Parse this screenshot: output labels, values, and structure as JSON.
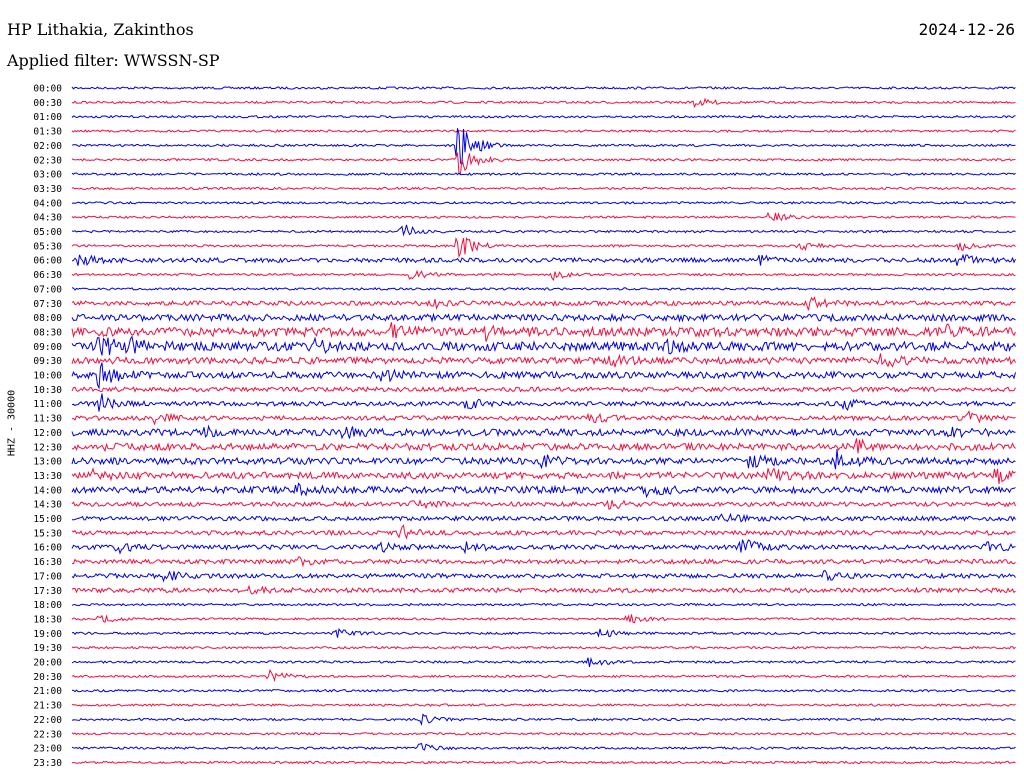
{
  "header": {
    "station": "HP Lithakia, Zakinthos",
    "date": "2024-12-26",
    "filter": "Applied filter: WWSSN-SP"
  },
  "colors": {
    "even_trace": "#0000e0",
    "odd_trace": "#f01040"
  },
  "chart_data": {
    "type": "line",
    "title": "HP Lithakia, Zakinthos",
    "subtitle": "Applied filter: WWSSN-SP",
    "ylabel": "HHZ - 30000",
    "xlabel": "",
    "row_labels": [
      "00:00",
      "00:30",
      "01:00",
      "01:30",
      "02:00",
      "02:30",
      "03:00",
      "03:30",
      "04:00",
      "04:30",
      "05:00",
      "05:30",
      "06:00",
      "06:30",
      "07:00",
      "07:30",
      "08:00",
      "08:30",
      "09:00",
      "09:30",
      "10:00",
      "10:30",
      "11:00",
      "11:30",
      "12:00",
      "12:30",
      "13:00",
      "13:30",
      "14:00",
      "14:30",
      "15:00",
      "15:30",
      "16:00",
      "16:30",
      "17:00",
      "17:30",
      "18:00",
      "18:30",
      "19:00",
      "19:30",
      "20:00",
      "20:30",
      "21:00",
      "21:30",
      "22:00",
      "22:30",
      "23:00",
      "23:30"
    ],
    "noise_level": [
      1,
      1,
      1,
      1,
      1,
      1,
      1,
      1,
      1,
      1,
      1,
      1,
      2,
      1,
      1,
      2,
      3,
      4,
      4,
      3,
      3,
      2,
      2,
      2,
      3,
      3,
      3,
      3,
      3,
      2,
      2,
      2,
      2,
      2,
      2,
      2,
      1,
      1,
      1,
      1,
      1,
      1,
      1,
      1,
      1,
      1,
      1,
      1
    ],
    "events": [
      {
        "row": 1,
        "x": 0.66,
        "amp": 1.5
      },
      {
        "row": 4,
        "x": 0.41,
        "amp": 8
      },
      {
        "row": 5,
        "x": 0.41,
        "amp": 5
      },
      {
        "row": 9,
        "x": 0.74,
        "amp": 1.5
      },
      {
        "row": 10,
        "x": 0.35,
        "amp": 2.5
      },
      {
        "row": 11,
        "x": 0.41,
        "amp": 4
      },
      {
        "row": 11,
        "x": 0.77,
        "amp": 1.5
      },
      {
        "row": 11,
        "x": 0.94,
        "amp": 1.5
      },
      {
        "row": 12,
        "x": 0.01,
        "amp": 1.5
      },
      {
        "row": 12,
        "x": 0.73,
        "amp": 1.5
      },
      {
        "row": 12,
        "x": 0.94,
        "amp": 2
      },
      {
        "row": 13,
        "x": 0.36,
        "amp": 1.5
      },
      {
        "row": 13,
        "x": 0.51,
        "amp": 1.5
      },
      {
        "row": 15,
        "x": 0.38,
        "amp": 1.5
      },
      {
        "row": 15,
        "x": 0.78,
        "amp": 2
      },
      {
        "row": 17,
        "x": 0.34,
        "amp": 2
      },
      {
        "row": 17,
        "x": 0.44,
        "amp": 2
      },
      {
        "row": 17,
        "x": 0.93,
        "amp": 2
      },
      {
        "row": 18,
        "x": 0.03,
        "amp": 3
      },
      {
        "row": 18,
        "x": 0.06,
        "amp": 2
      },
      {
        "row": 18,
        "x": 0.26,
        "amp": 1.5
      },
      {
        "row": 18,
        "x": 0.63,
        "amp": 1.5
      },
      {
        "row": 19,
        "x": 0.57,
        "amp": 1.5
      },
      {
        "row": 19,
        "x": 0.86,
        "amp": 2
      },
      {
        "row": 20,
        "x": 0.03,
        "amp": 4
      },
      {
        "row": 20,
        "x": 0.33,
        "amp": 1.5
      },
      {
        "row": 22,
        "x": 0.03,
        "amp": 3
      },
      {
        "row": 22,
        "x": 0.42,
        "amp": 1.5
      },
      {
        "row": 22,
        "x": 0.82,
        "amp": 1.5
      },
      {
        "row": 23,
        "x": 0.09,
        "amp": 1.5
      },
      {
        "row": 23,
        "x": 0.55,
        "amp": 1.5
      },
      {
        "row": 23,
        "x": 0.95,
        "amp": 1.5
      },
      {
        "row": 24,
        "x": 0.14,
        "amp": 1.5
      },
      {
        "row": 24,
        "x": 0.29,
        "amp": 1.5
      },
      {
        "row": 24,
        "x": 0.93,
        "amp": 1.5
      },
      {
        "row": 25,
        "x": 0.02,
        "amp": 1.5
      },
      {
        "row": 25,
        "x": 0.83,
        "amp": 2
      },
      {
        "row": 26,
        "x": 0.5,
        "amp": 1.5
      },
      {
        "row": 26,
        "x": 0.72,
        "amp": 2
      },
      {
        "row": 26,
        "x": 0.81,
        "amp": 3
      },
      {
        "row": 27,
        "x": 0.02,
        "amp": 1.5
      },
      {
        "row": 27,
        "x": 0.74,
        "amp": 2
      },
      {
        "row": 27,
        "x": 0.98,
        "amp": 2
      },
      {
        "row": 28,
        "x": 0.24,
        "amp": 1.5
      },
      {
        "row": 28,
        "x": 0.61,
        "amp": 2
      },
      {
        "row": 29,
        "x": 0.36,
        "amp": 1.5
      },
      {
        "row": 29,
        "x": 0.57,
        "amp": 1.5
      },
      {
        "row": 30,
        "x": 0.69,
        "amp": 1.5
      },
      {
        "row": 31,
        "x": 0.35,
        "amp": 2
      },
      {
        "row": 32,
        "x": 0.05,
        "amp": 1.5
      },
      {
        "row": 32,
        "x": 0.33,
        "amp": 1.5
      },
      {
        "row": 32,
        "x": 0.42,
        "amp": 1.5
      },
      {
        "row": 32,
        "x": 0.71,
        "amp": 3
      },
      {
        "row": 32,
        "x": 0.97,
        "amp": 1.5
      },
      {
        "row": 33,
        "x": 0.24,
        "amp": 1.5
      },
      {
        "row": 34,
        "x": 0.1,
        "amp": 1.5
      },
      {
        "row": 34,
        "x": 0.8,
        "amp": 1.5
      },
      {
        "row": 35,
        "x": 0.19,
        "amp": 1.5
      },
      {
        "row": 37,
        "x": 0.03,
        "amp": 1.5
      },
      {
        "row": 37,
        "x": 0.59,
        "amp": 1.5
      },
      {
        "row": 38,
        "x": 0.28,
        "amp": 1.5
      },
      {
        "row": 38,
        "x": 0.56,
        "amp": 1.5
      },
      {
        "row": 40,
        "x": 0.55,
        "amp": 1.5
      },
      {
        "row": 41,
        "x": 0.21,
        "amp": 2
      },
      {
        "row": 44,
        "x": 0.37,
        "amp": 1.5
      },
      {
        "row": 46,
        "x": 0.37,
        "amp": 1.5
      }
    ]
  }
}
